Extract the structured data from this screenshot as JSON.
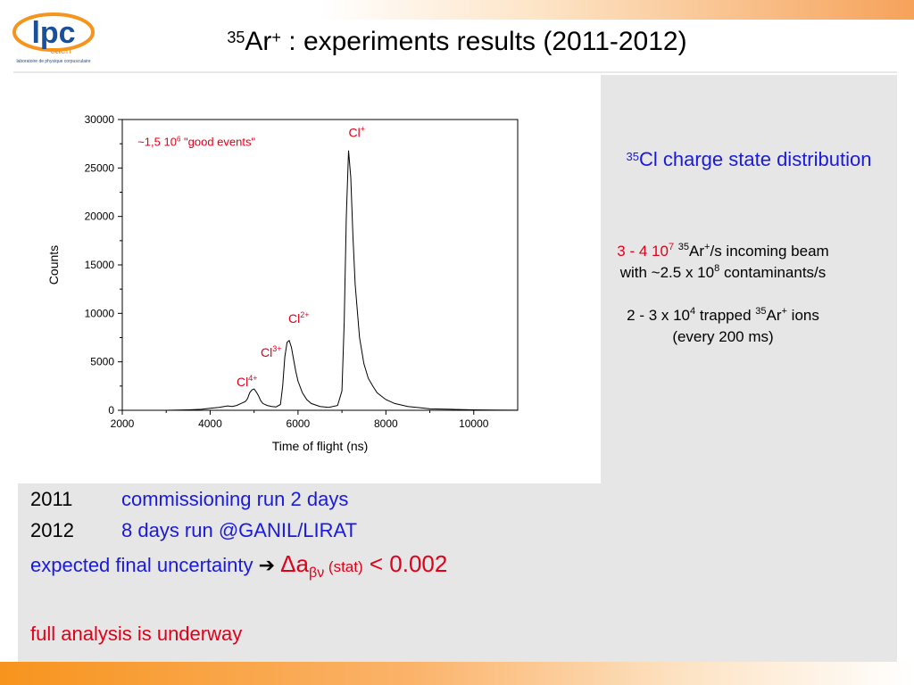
{
  "title": {
    "superscript": "35",
    "species": "Ar",
    "charge": "+",
    "rest": " : experiments results (2011-2012)"
  },
  "logo": {
    "text": "lpc",
    "subtext": "caen",
    "caption": "laboratoire de physique corpusculaire"
  },
  "side": {
    "heading_sup": "35",
    "heading_text": "Cl charge state distribution",
    "beam_line1_a": "3 - 4 10",
    "beam_line1_exp": "7",
    "beam_line1_sup": "35",
    "beam_line1_b": "Ar",
    "beam_line1_charge": "+",
    "beam_line1_c": "/s incoming beam",
    "beam_line2_a": "with ~2.5 x 10",
    "beam_line2_exp": "8",
    "beam_line2_b": " contaminants/s",
    "trap_line1_a": "2 - 3 x 10",
    "trap_line1_exp": "4",
    "trap_line1_b": " trapped ",
    "trap_line1_sup": "35",
    "trap_line1_c": "Ar",
    "trap_line1_charge": "+",
    "trap_line1_d": " ions",
    "trap_line2": "(every 200 ms)"
  },
  "bottom": {
    "row1_year": "2011",
    "row1_text": "commissioning run 2 days",
    "row2_year": "2012",
    "row2_text": "8 days run @GANIL/LIRAT",
    "row3_text": "expected final uncertainty ",
    "row3_arrow": "➔",
    "row3_delta": "Δa",
    "row3_sub": "βν",
    "row3_stat": " (stat)",
    "row3_val": " < 0.002",
    "row4_text": "full analysis is underway"
  },
  "colors": {
    "blue": "#1a1adb",
    "red": "#e0001a",
    "orange": "#f7941d",
    "panel": "#e6e6e6"
  },
  "chart_data": {
    "type": "line",
    "xlabel": "Time of flight (ns)",
    "ylabel": "Counts",
    "xlim": [
      2000,
      11000
    ],
    "ylim": [
      0,
      30000
    ],
    "xticks": [
      2000,
      4000,
      6000,
      8000,
      10000
    ],
    "yticks": [
      0,
      5000,
      10000,
      15000,
      20000,
      25000,
      30000
    ],
    "note_a": "~1,5 10",
    "note_exp": "6",
    "note_b": " \"good events\"",
    "peak_labels": [
      {
        "ion": "Cl",
        "charge": "+",
        "x": 7150,
        "y": 28200
      },
      {
        "ion": "Cl",
        "charge": "2+",
        "x": 5780,
        "y": 9000
      },
      {
        "ion": "Cl",
        "charge": "3+",
        "x": 5150,
        "y": 5500
      },
      {
        "ion": "Cl",
        "charge": "4+",
        "x": 4600,
        "y": 2500
      }
    ],
    "x": [
      2000,
      2500,
      3000,
      3500,
      3800,
      4000,
      4200,
      4400,
      4500,
      4600,
      4700,
      4800,
      4850,
      4900,
      4950,
      5000,
      5050,
      5100,
      5150,
      5200,
      5300,
      5400,
      5500,
      5600,
      5650,
      5700,
      5750,
      5800,
      5850,
      5900,
      5950,
      6000,
      6100,
      6200,
      6300,
      6500,
      6700,
      6900,
      7000,
      7050,
      7100,
      7150,
      7200,
      7250,
      7300,
      7400,
      7500,
      7600,
      7700,
      7800,
      8000,
      8200,
      8500,
      8800,
      9000,
      9500,
      10000,
      10500,
      11000
    ],
    "y": [
      0,
      0,
      0,
      50,
      100,
      200,
      300,
      450,
      400,
      500,
      700,
      900,
      1200,
      1800,
      2100,
      2200,
      1900,
      1500,
      1000,
      700,
      500,
      400,
      350,
      600,
      2500,
      5500,
      7000,
      7200,
      6500,
      5200,
      4000,
      3000,
      1800,
      1100,
      700,
      400,
      300,
      500,
      2000,
      9000,
      20000,
      26800,
      24000,
      18000,
      13000,
      7500,
      4800,
      3300,
      2500,
      1800,
      1100,
      700,
      400,
      250,
      150,
      100,
      50,
      30,
      10
    ],
    "grid": false,
    "legend": "none"
  }
}
